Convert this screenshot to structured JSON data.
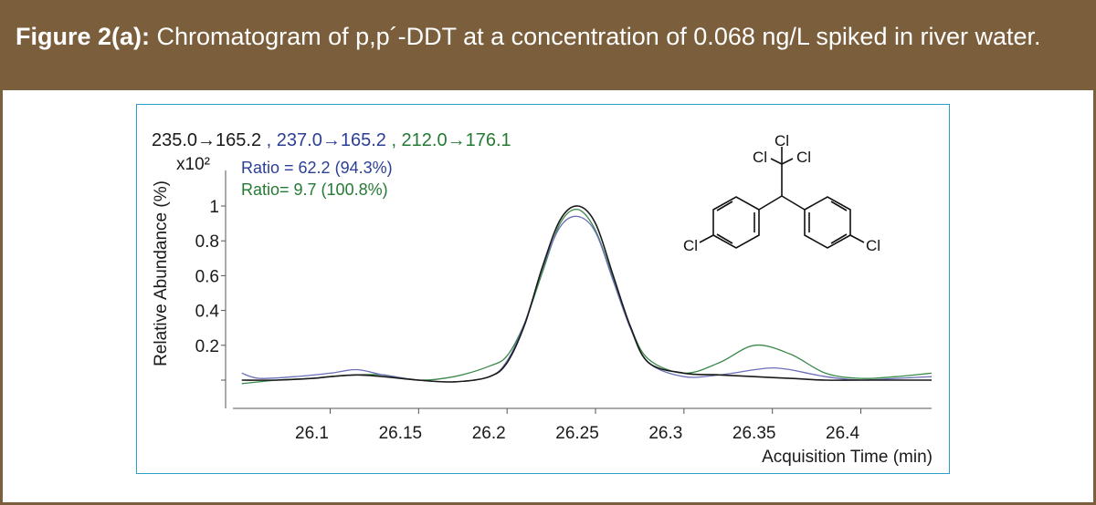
{
  "figure": {
    "label": "Figure 2(a):",
    "caption": "Chromatogram of p,p´-DDT at a concentration of 0.068 ng/L spiked in river water."
  },
  "colors": {
    "header_bg": "#7b5e3b",
    "panel_border": "#2aa0c8",
    "trace_quant": "#1a1a1a",
    "trace_qual1": "#6a6fb8",
    "trace_qual2": "#3a8a4a",
    "text_blue": "#2b3f94",
    "text_green": "#247a33"
  },
  "chart_data": {
    "type": "line",
    "title": "",
    "xlabel": "Acquisition Time (min)",
    "ylabel": "Relative Abundance (%)",
    "y_multiplier": "x10²",
    "xlim": [
      26.045,
      26.44
    ],
    "ylim": [
      -0.08,
      1.06
    ],
    "x_ticks": [
      26.1,
      26.15,
      26.2,
      26.25,
      26.3,
      26.35,
      26.4
    ],
    "x_tick_labels": [
      "26.1",
      "26.15",
      "26.2",
      "26.25",
      "26.3",
      "26.35",
      "26.4"
    ],
    "y_ticks": [
      0,
      0.2,
      0.4,
      0.6,
      0.8,
      1
    ],
    "y_tick_labels": [
      "",
      "0.2",
      "0.4",
      "0.6",
      "0.8",
      "1"
    ],
    "transitions": [
      {
        "text": "235.0→165.2",
        "color": "#1a1a1a"
      },
      {
        "text": " , 237.0→165.2",
        "color": "#2b3f94"
      },
      {
        "text": " , 212.0→176.1",
        "color": "#247a33"
      }
    ],
    "ratios": [
      {
        "text": "Ratio = 62.2 (94.3%)",
        "color": "#2b3f94"
      },
      {
        "text": "Ratio= 9.7 (100.8%)",
        "color": "#247a33"
      }
    ],
    "series": [
      {
        "color": "#1a1a1a",
        "x": [
          26.05,
          26.07,
          26.09,
          26.1,
          26.115,
          26.13,
          26.15,
          26.17,
          26.19,
          26.2,
          26.21,
          26.22,
          26.23,
          26.24,
          26.25,
          26.26,
          26.27,
          26.28,
          26.3,
          26.32,
          26.34,
          26.36,
          26.38,
          26.4,
          26.44
        ],
        "y": [
          0.0,
          0.0,
          0.01,
          0.02,
          0.03,
          0.02,
          0.0,
          -0.01,
          0.02,
          0.1,
          0.32,
          0.65,
          0.92,
          1.0,
          0.9,
          0.6,
          0.3,
          0.1,
          0.04,
          0.03,
          0.02,
          0.01,
          0.0,
          0.0,
          0.0
        ]
      },
      {
        "color": "#6a6fb8",
        "x": [
          26.05,
          26.06,
          26.08,
          26.1,
          26.115,
          26.13,
          26.15,
          26.17,
          26.19,
          26.2,
          26.21,
          26.22,
          26.23,
          26.24,
          26.25,
          26.26,
          26.27,
          26.28,
          26.3,
          26.32,
          26.34,
          26.35,
          26.36,
          26.38,
          26.4,
          26.42,
          26.44
        ],
        "y": [
          0.04,
          0.01,
          0.02,
          0.04,
          0.06,
          0.03,
          0.0,
          -0.01,
          0.02,
          0.11,
          0.33,
          0.64,
          0.88,
          0.94,
          0.85,
          0.57,
          0.29,
          0.1,
          0.02,
          0.03,
          0.06,
          0.07,
          0.06,
          0.02,
          0.0,
          0.01,
          0.02
        ]
      },
      {
        "color": "#3a8a4a",
        "x": [
          26.05,
          26.07,
          26.09,
          26.1,
          26.115,
          26.13,
          26.15,
          26.17,
          26.19,
          26.2,
          26.21,
          26.22,
          26.23,
          26.24,
          26.25,
          26.26,
          26.27,
          26.28,
          26.3,
          26.32,
          26.34,
          26.36,
          26.38,
          26.4,
          26.42,
          26.44
        ],
        "y": [
          -0.02,
          0.0,
          0.01,
          0.02,
          0.03,
          0.03,
          0.0,
          0.02,
          0.08,
          0.14,
          0.33,
          0.62,
          0.9,
          0.98,
          0.86,
          0.58,
          0.3,
          0.12,
          0.04,
          0.1,
          0.2,
          0.15,
          0.04,
          0.01,
          0.02,
          0.04
        ]
      }
    ],
    "molecule_atom_labels": {
      "top": "Cl",
      "left": "Cl",
      "right": "Cl",
      "ring_left": "Cl",
      "ring_right": "Cl"
    }
  }
}
